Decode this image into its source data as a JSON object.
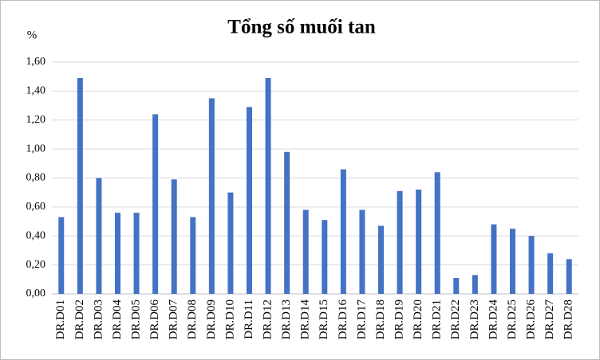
{
  "chart_data": {
    "type": "bar",
    "title": "Tổng số muối tan",
    "y_label": "%",
    "categories": [
      "DR.D01",
      "DR.D02",
      "DR.D03",
      "DR.D04",
      "DR.D05",
      "DR.D06",
      "DR.D07",
      "DR.D08",
      "DR.D09",
      "DR.D10",
      "DR.D11",
      "DR.D12",
      "DR.D13",
      "DR.D14",
      "DR.D15",
      "DR.D16",
      "DR.D17",
      "DR.D18",
      "DR.D19",
      "DR.D20",
      "DR.D21",
      "DR.D22",
      "DR.D23",
      "DR.D24",
      "DR.D25",
      "DR.D26",
      "DR.D27",
      "DR.D28"
    ],
    "values": [
      0.53,
      1.49,
      0.8,
      0.56,
      0.56,
      1.24,
      0.79,
      0.53,
      1.35,
      0.7,
      1.29,
      1.49,
      0.98,
      0.58,
      0.51,
      0.86,
      0.58,
      0.47,
      0.71,
      0.72,
      0.84,
      0.11,
      0.13,
      0.48,
      0.45,
      0.4,
      0.28,
      0.24
    ],
    "color": "#4472c4",
    "ylim": [
      0,
      1.6
    ],
    "yticks": [
      {
        "value": 0,
        "label": "0,00"
      },
      {
        "value": 0.2,
        "label": "0,20"
      },
      {
        "value": 0.4,
        "label": "0,40"
      },
      {
        "value": 0.6,
        "label": "0,60"
      },
      {
        "value": 0.8,
        "label": "0,80"
      },
      {
        "value": 1.0,
        "label": "1,00"
      },
      {
        "value": 1.2,
        "label": "1,20"
      },
      {
        "value": 1.4,
        "label": "1,40"
      },
      {
        "value": 1.6,
        "label": "1,60"
      }
    ],
    "grid": true
  }
}
